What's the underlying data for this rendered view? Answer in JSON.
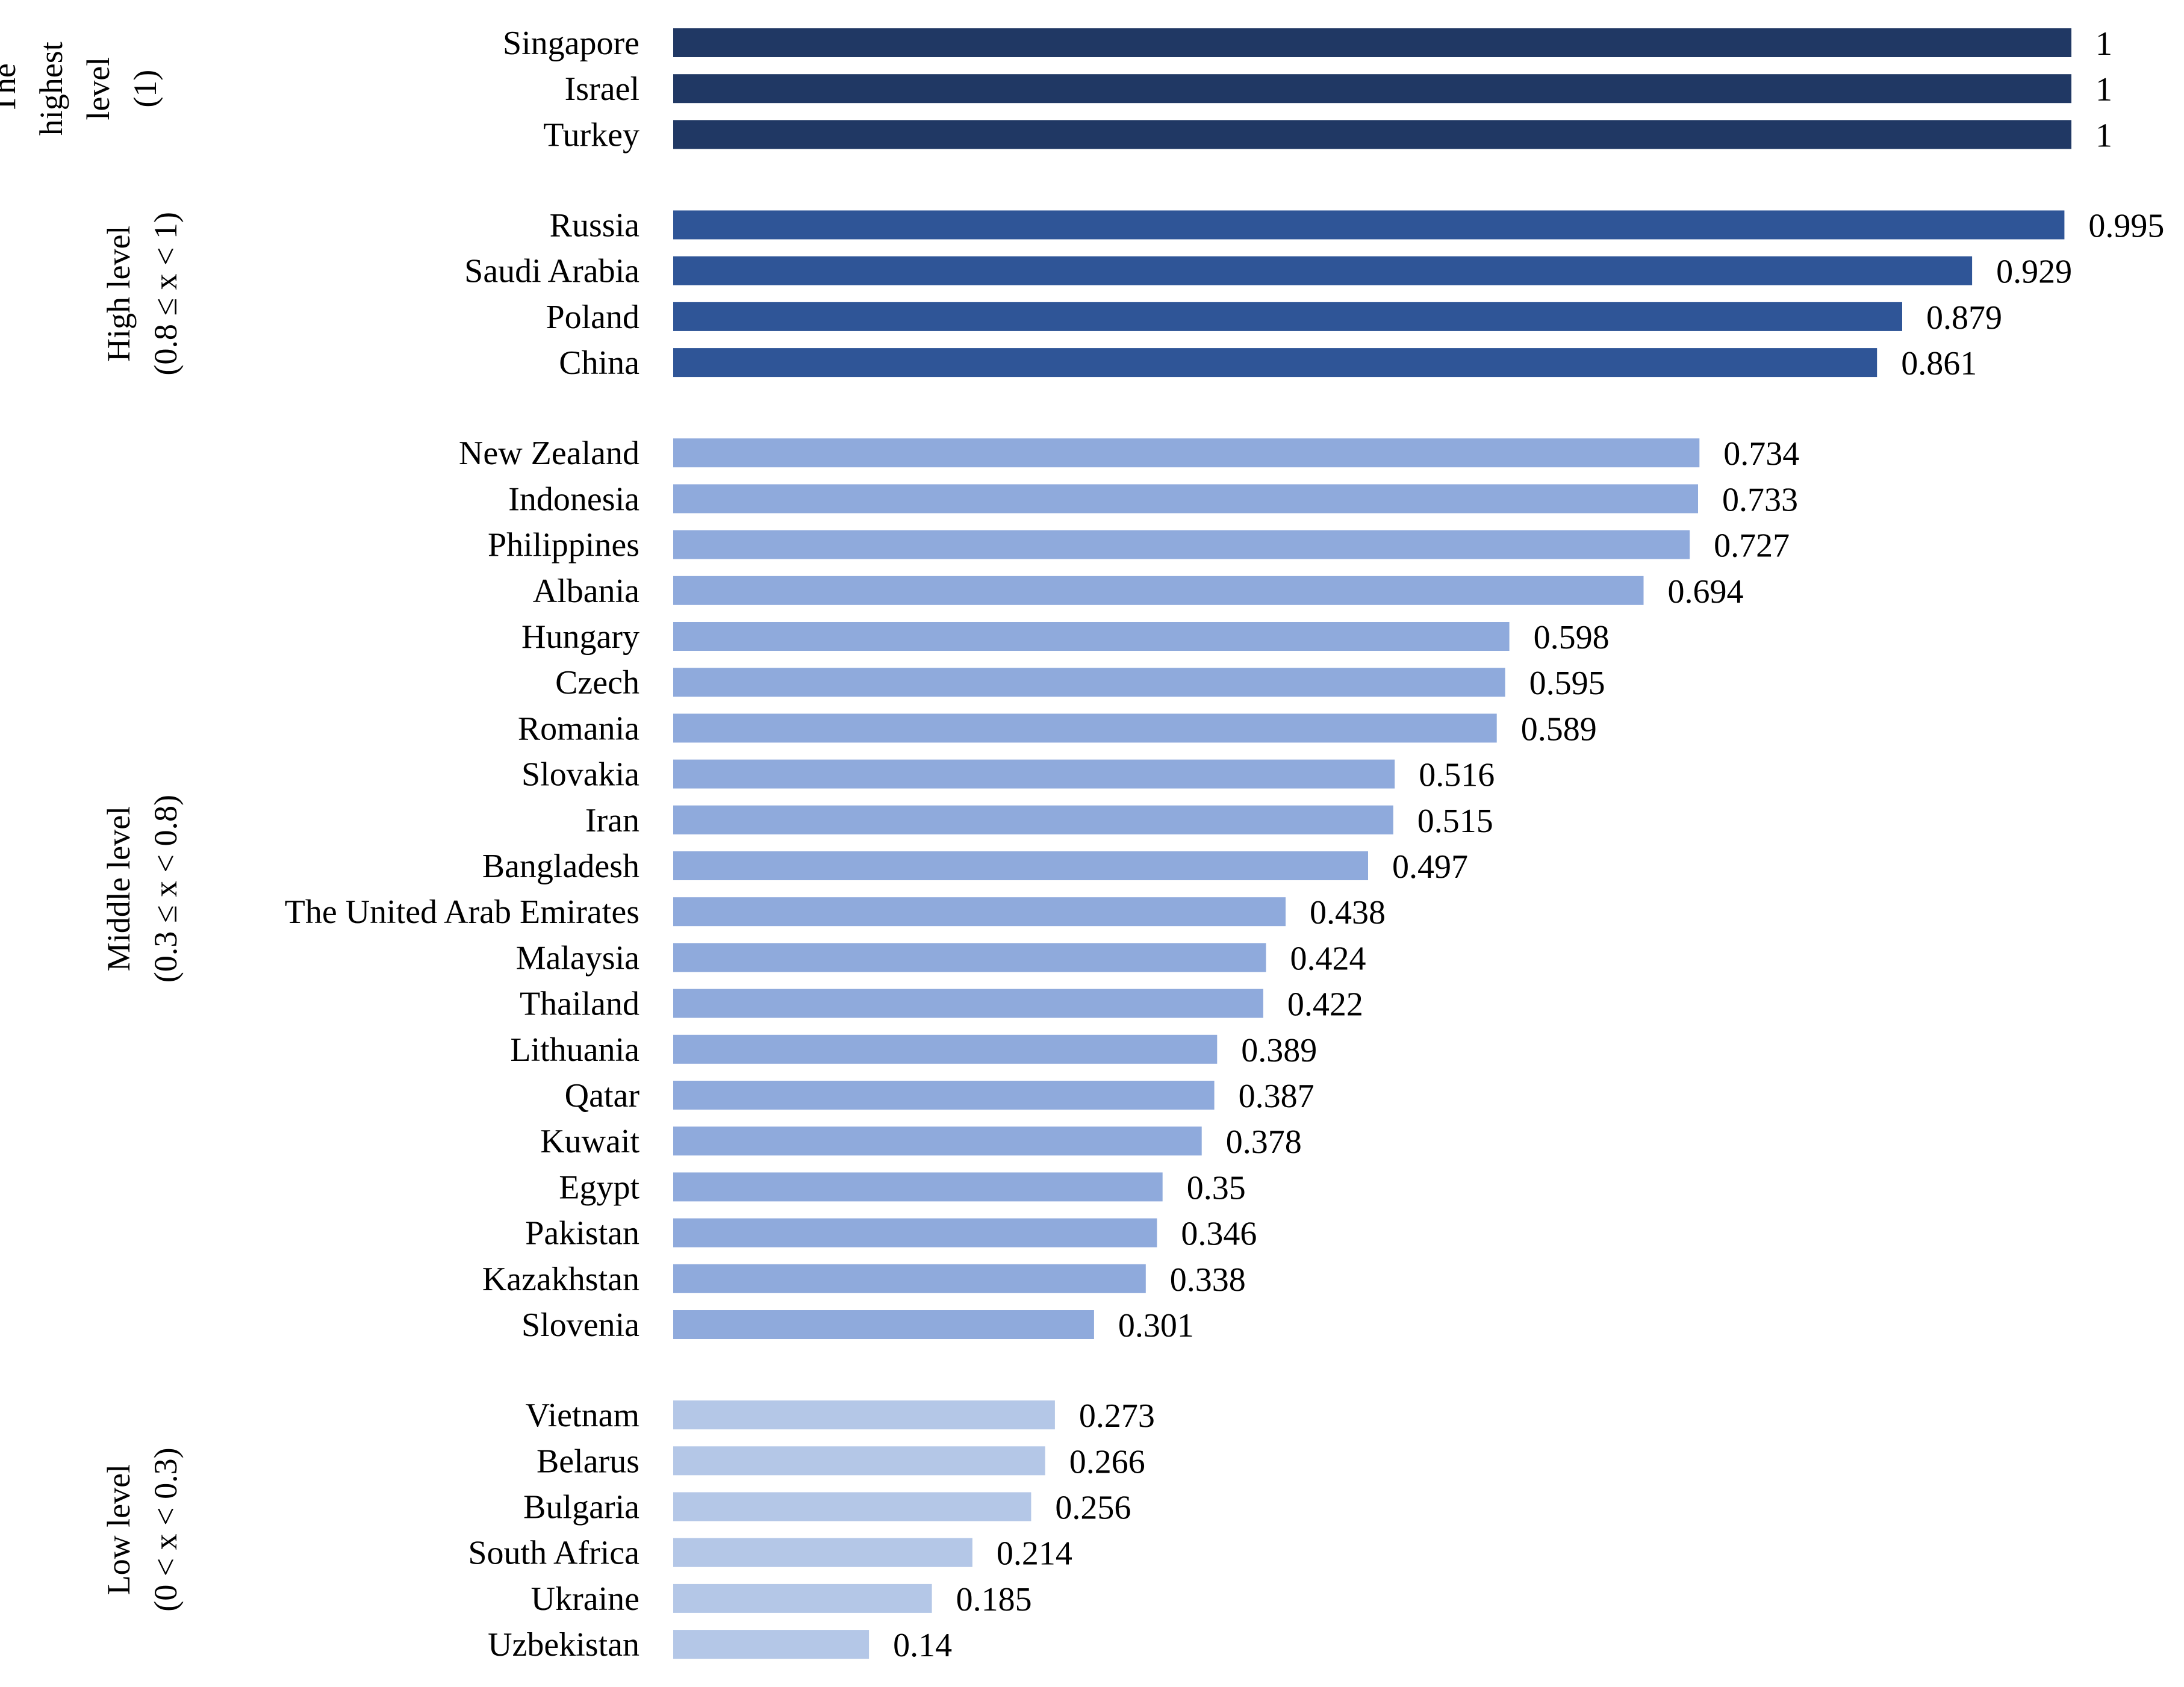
{
  "chart_data": {
    "type": "bar",
    "orientation": "horizontal",
    "title": "",
    "xlabel": "",
    "ylabel": "",
    "xlim": [
      0,
      1
    ],
    "grid": false,
    "colors": {
      "highest": "#203864",
      "high": "#2f5597",
      "middle": "#8faadc",
      "low": "#b4c7e7"
    },
    "groups": [
      {
        "key": "highest",
        "label_lines": [
          "The",
          "highest",
          "level",
          "(1)"
        ],
        "items": [
          {
            "category": "Singapore",
            "value": 1,
            "label": "1"
          },
          {
            "category": "Israel",
            "value": 1,
            "label": "1"
          },
          {
            "category": "Turkey",
            "value": 1,
            "label": "1"
          }
        ]
      },
      {
        "key": "high",
        "label_lines": [
          "High level",
          "(0.8 ≤ x < 1)"
        ],
        "items": [
          {
            "category": "Russia",
            "value": 0.995,
            "label": "0.995"
          },
          {
            "category": "Saudi Arabia",
            "value": 0.929,
            "label": "0.929"
          },
          {
            "category": "Poland",
            "value": 0.879,
            "label": "0.879"
          },
          {
            "category": "China",
            "value": 0.861,
            "label": "0.861"
          }
        ]
      },
      {
        "key": "middle",
        "label_lines": [
          "Middle level",
          "(0.3 ≤ x < 0.8)"
        ],
        "items": [
          {
            "category": "New Zealand",
            "value": 0.734,
            "label": "0.734"
          },
          {
            "category": "Indonesia",
            "value": 0.733,
            "label": "0.733"
          },
          {
            "category": "Philippines",
            "value": 0.727,
            "label": "0.727"
          },
          {
            "category": "Albania",
            "value": 0.694,
            "label": "0.694"
          },
          {
            "category": "Hungary",
            "value": 0.598,
            "label": "0.598"
          },
          {
            "category": "Czech",
            "value": 0.595,
            "label": "0.595"
          },
          {
            "category": "Romania",
            "value": 0.589,
            "label": "0.589"
          },
          {
            "category": "Slovakia",
            "value": 0.516,
            "label": "0.516"
          },
          {
            "category": "Iran",
            "value": 0.515,
            "label": "0.515"
          },
          {
            "category": "Bangladesh",
            "value": 0.497,
            "label": "0.497"
          },
          {
            "category": "The United Arab Emirates",
            "value": 0.438,
            "label": "0.438"
          },
          {
            "category": "Malaysia",
            "value": 0.424,
            "label": "0.424"
          },
          {
            "category": "Thailand",
            "value": 0.422,
            "label": "0.422"
          },
          {
            "category": "Lithuania",
            "value": 0.389,
            "label": "0.389"
          },
          {
            "category": "Qatar",
            "value": 0.387,
            "label": "0.387"
          },
          {
            "category": "Kuwait",
            "value": 0.378,
            "label": "0.378"
          },
          {
            "category": "Egypt",
            "value": 0.35,
            "label": "0.35"
          },
          {
            "category": "Pakistan",
            "value": 0.346,
            "label": "0.346"
          },
          {
            "category": "Kazakhstan",
            "value": 0.338,
            "label": "0.338"
          },
          {
            "category": "Slovenia",
            "value": 0.301,
            "label": "0.301"
          }
        ]
      },
      {
        "key": "low",
        "label_lines": [
          "Low level",
          "(0 < x < 0.3)"
        ],
        "items": [
          {
            "category": "Vietnam",
            "value": 0.273,
            "label": "0.273"
          },
          {
            "category": "Belarus",
            "value": 0.266,
            "label": "0.266"
          },
          {
            "category": "Bulgaria",
            "value": 0.256,
            "label": "0.256"
          },
          {
            "category": "South Africa",
            "value": 0.214,
            "label": "0.214"
          },
          {
            "category": "Ukraine",
            "value": 0.185,
            "label": "0.185"
          },
          {
            "category": "Uzbekistan",
            "value": 0.14,
            "label": "0.14"
          }
        ]
      }
    ]
  }
}
